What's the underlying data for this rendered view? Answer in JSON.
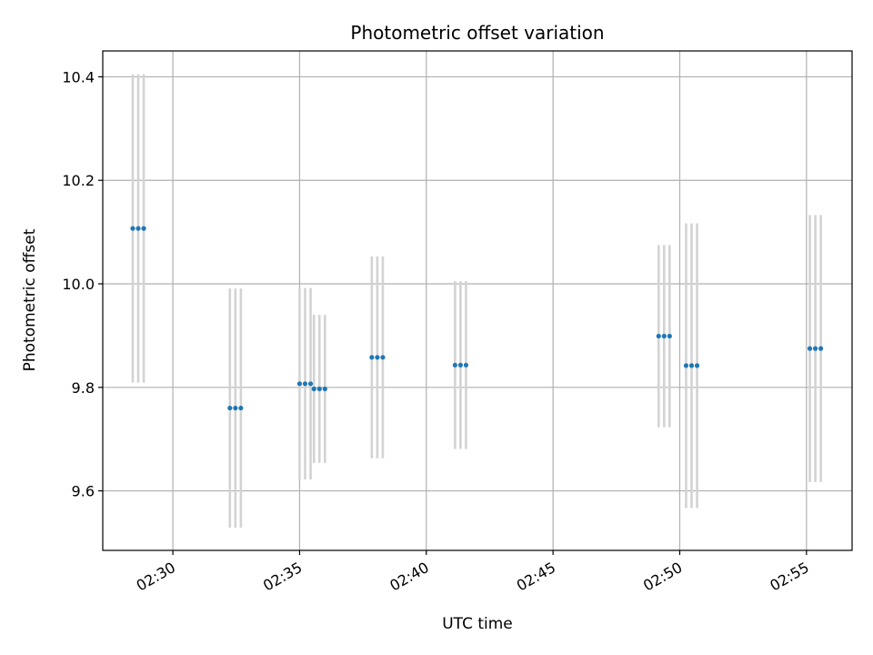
{
  "chart_data": {
    "type": "scatter",
    "title": "Photometric offset variation",
    "xlabel": "UTC time",
    "ylabel": "Photometric offset",
    "xlim": [
      "02:27:14",
      "02:56:48"
    ],
    "ylim": [
      9.485,
      10.45
    ],
    "xticks": [
      "02:30",
      "02:35",
      "02:40",
      "02:45",
      "02:50",
      "02:55"
    ],
    "yticks": [
      9.6,
      9.8,
      10.0,
      10.2,
      10.4
    ],
    "grid": true,
    "colors": {
      "point": "#1f77b4",
      "errorbar": "#d3d3d3",
      "grid": "#b0b0b0"
    },
    "groups": [
      {
        "times": [
          "02:28:25",
          "02:28:38",
          "02:28:51"
        ],
        "value": 10.107,
        "err": 0.298
      },
      {
        "times": [
          "02:32:15",
          "02:32:28",
          "02:32:41"
        ],
        "value": 9.76,
        "err": 0.231
      },
      {
        "times": [
          "02:35:00",
          "02:35:13",
          "02:35:26"
        ],
        "value": 9.807,
        "err": 0.185
      },
      {
        "times": [
          "02:35:34",
          "02:35:47",
          "02:36:00"
        ],
        "value": 9.797,
        "err": 0.143
      },
      {
        "times": [
          "02:37:51",
          "02:38:04",
          "02:38:17"
        ],
        "value": 9.858,
        "err": 0.195
      },
      {
        "times": [
          "02:41:08",
          "02:41:21",
          "02:41:34"
        ],
        "value": 9.843,
        "err": 0.162
      },
      {
        "times": [
          "02:49:10",
          "02:49:23",
          "02:49:36"
        ],
        "value": 9.899,
        "err": 0.176
      },
      {
        "times": [
          "02:50:15",
          "02:50:28",
          "02:50:41"
        ],
        "value": 9.842,
        "err": 0.275
      },
      {
        "times": [
          "02:55:08",
          "02:55:21",
          "02:55:34"
        ],
        "value": 9.875,
        "err": 0.258
      }
    ]
  }
}
